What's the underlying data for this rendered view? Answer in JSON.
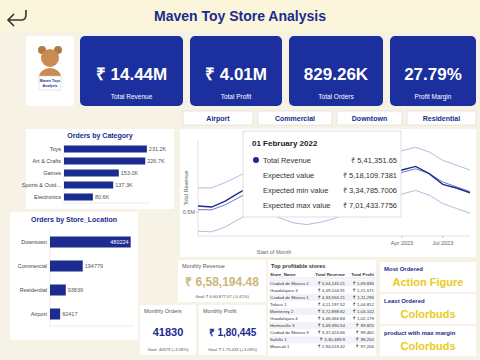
{
  "header": {
    "title": "Maven Toy Store Analysis",
    "logo_text": "Maven Toys Analysis"
  },
  "kpis": [
    {
      "value": "₹ 14.44M",
      "label": "Total Revenue"
    },
    {
      "value": "₹ 4.01M",
      "label": "Total Profit"
    },
    {
      "value": "829.26K",
      "label": "Total Orders"
    },
    {
      "value": "27.79%",
      "label": "Profit Margin"
    }
  ],
  "slicer": [
    "Airport",
    "Commercial",
    "Downtown",
    "Residential"
  ],
  "chart_data": [
    {
      "type": "bar",
      "title": "Orders by Category",
      "orientation": "horizontal",
      "categories": [
        "Toys",
        "Art & Crafts",
        "Games",
        "Sports & Outd...",
        "Electronics"
      ],
      "values": [
        231200,
        226700,
        153000,
        137300,
        80600
      ],
      "value_labels": [
        "231.2K",
        "226.7K",
        "153.0K",
        "137.3K",
        "80.6K"
      ],
      "data_labels": true,
      "color": "#1b2b8f",
      "xlim": [
        0,
        240000
      ],
      "tick_labels": false
    },
    {
      "type": "bar",
      "title": "Orders by Store_Location",
      "orientation": "horizontal",
      "categories": [
        "Downtown",
        "Commercial",
        "Residential",
        "Airport"
      ],
      "values": [
        480224,
        194779,
        93839,
        60417
      ],
      "data_labels": true,
      "color": "#1b2b8f",
      "xlim": [
        0,
        500000
      ],
      "tick_labels": false
    },
    {
      "type": "line",
      "x_label": "Start of Month",
      "y_label": "Total Revenue",
      "categories": [
        null,
        null,
        null,
        null,
        null,
        null,
        null,
        null,
        null,
        null,
        null,
        null,
        null,
        null,
        null,
        "Apr 2023",
        null,
        null,
        "Jul 2023",
        null,
        null
      ],
      "ylim": [
        300000,
        1100000
      ],
      "yticks": [
        {
          "value": 500000,
          "label": "0.5M"
        }
      ],
      "grid": false,
      "series": [
        {
          "name": "Total Revenue",
          "color": "#1b2b8f",
          "line_style": "solid",
          "values": [
            550000,
            541351.65,
            590000,
            660000,
            720000,
            700000,
            600000,
            580000,
            560000,
            600000,
            620000,
            690000,
            620000,
            660000,
            790000,
            850000,
            880000,
            820000,
            730000,
            700000,
            660000
          ]
        },
        {
          "name": "Expected value",
          "color": "#6b7bc6",
          "line_style": "solid",
          "values": [
            520000,
            518109.7381,
            560000,
            620000,
            680000,
            690000,
            630000,
            590000,
            575000,
            595000,
            625000,
            670000,
            640000,
            670000,
            760000,
            830000,
            860000,
            820000,
            750000,
            710000,
            670000
          ]
        },
        {
          "name": "Expected min value",
          "color": "#b3bbe2",
          "line_style": "solid",
          "values": [
            340000,
            334785.7006,
            375000,
            440000,
            500000,
            510000,
            450000,
            410000,
            395000,
            415000,
            445000,
            490000,
            460000,
            490000,
            580000,
            650000,
            680000,
            640000,
            570000,
            530000,
            490000
          ]
        },
        {
          "name": "Expected max value",
          "color": "#b3bbe2",
          "line_style": "solid",
          "values": [
            700000,
            701433.7756,
            745000,
            800000,
            860000,
            870000,
            810000,
            770000,
            755000,
            775000,
            805000,
            850000,
            820000,
            850000,
            940000,
            1010000,
            1040000,
            1000000,
            930000,
            890000,
            850000
          ]
        }
      ]
    }
  ],
  "tooltip": {
    "date": "01 February 2022",
    "values": [
      "₹ 5,41,351.65",
      "₹ 5,18,109.7381",
      "₹ 3,34,785.7006",
      "₹ 7,01,433.7756"
    ]
  },
  "kpi_goals": [
    {
      "title": "Monthly Revenue",
      "value": "₹ 6,58,194.48",
      "goal": "Goal: ₹ 6,60,877.07 (-0.41%)"
    },
    {
      "title": "Monthly Orders",
      "value": "41830",
      "goal": "Goal: 40579 (+3.08%)"
    },
    {
      "title": "Monthly Profit",
      "value": "₹ 1,80,445",
      "goal": "Goal: ₹ 1,75,033 (+3.09%)"
    }
  ],
  "table": {
    "title": "Top profitable stores",
    "columns": [
      "Store_Name",
      "Total Revenue",
      "Total Profit"
    ],
    "rows": [
      [
        "Ciudad de Mexico 2",
        "₹ 5,54,145.21",
        "₹ 1,69,836"
      ],
      [
        "Guadalajara 3",
        "₹ 4,49,104.91",
        "₹ 1,21,571"
      ],
      [
        "Ciudad de Mexico 1",
        "₹ 4,33,556.21",
        "₹ 1,11,296"
      ],
      [
        "Toluca 1",
        "₹ 4,11,197.52",
        "₹ 1,04,812"
      ],
      [
        "Monterrey 2",
        "₹ 3,72,898.82",
        "₹ 1,04,102"
      ],
      [
        "Guadalajara 4",
        "₹ 3,48,466.84",
        "₹ 1,02,179"
      ],
      [
        "Hermosillo 3",
        "₹ 3,49,390.54",
        "₹ 99,825"
      ],
      [
        "Ciudad de Mexico 3",
        "₹ 3,37,424.66",
        "₹ 99,462"
      ],
      [
        "Saltillo 1",
        "₹ 3,30,489.9",
        "₹ 98,252"
      ],
      [
        "Mexicali 1",
        "₹ 2,94,019.42",
        "₹ 97,206"
      ]
    ]
  },
  "highlights": [
    {
      "label": "Most Ordered",
      "value": "Action Figure"
    },
    {
      "label": "Least Ordered",
      "value": "Colorbuds"
    },
    {
      "label": "product with max margin",
      "value": "Colorbuds"
    }
  ]
}
